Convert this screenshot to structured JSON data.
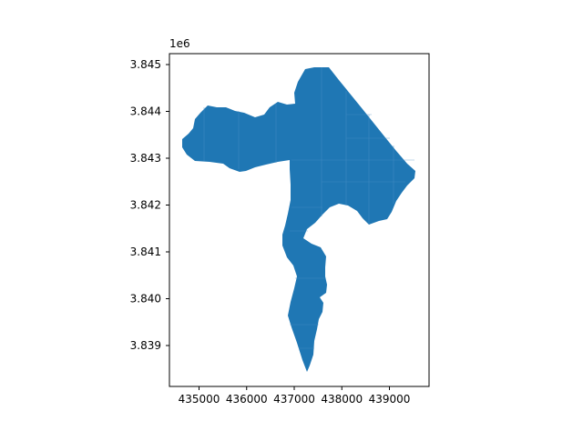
{
  "map": {
    "scale_label": "1e6",
    "fill_color": "#1f77b4",
    "edge_color": "#4a8fc6",
    "frame_color": "#000000",
    "x_ticks": [
      {
        "value": 435000,
        "label": "435000"
      },
      {
        "value": 436000,
        "label": "436000"
      },
      {
        "value": 437000,
        "label": "437000"
      },
      {
        "value": 438000,
        "label": "438000"
      },
      {
        "value": 439000,
        "label": "439000"
      }
    ],
    "y_ticks": [
      {
        "value": 3.839,
        "label": "3.839"
      },
      {
        "value": 3.84,
        "label": "3.840"
      },
      {
        "value": 3.841,
        "label": "3.841"
      },
      {
        "value": 3.842,
        "label": "3.842"
      },
      {
        "value": 3.843,
        "label": "3.843"
      },
      {
        "value": 3.844,
        "label": "3.844"
      },
      {
        "value": 3.845,
        "label": "3.845"
      }
    ]
  }
}
